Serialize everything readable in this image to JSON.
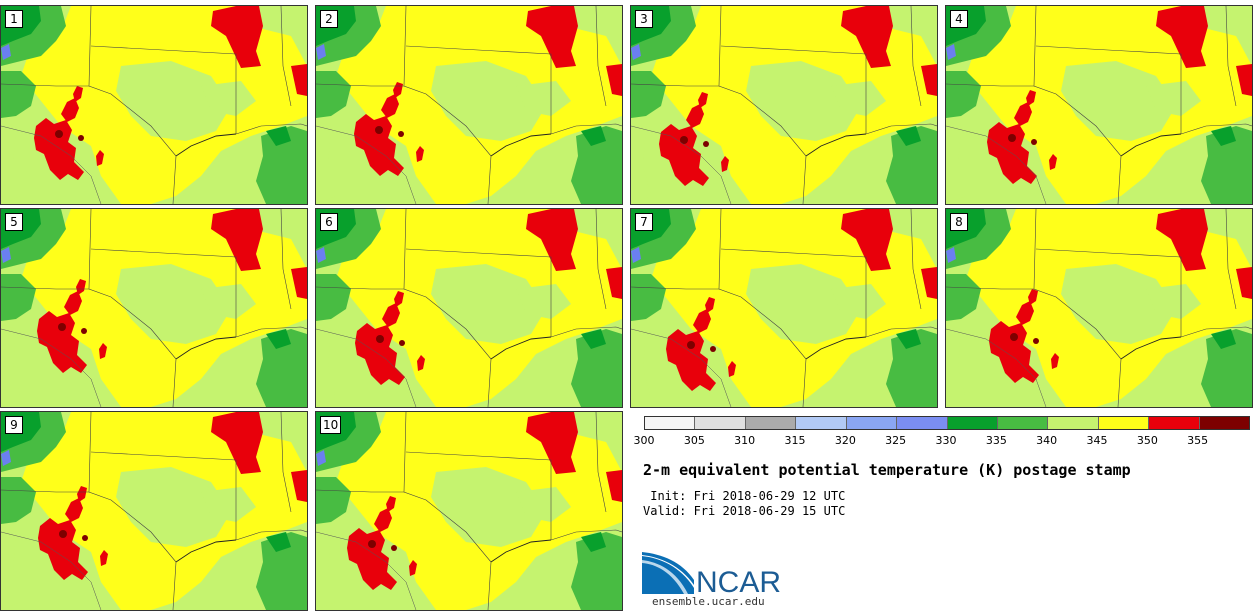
{
  "colors": {
    "c300": "#f5f5f5",
    "c305": "#e0e0e0",
    "c310": "#ababab",
    "c315": "#b2caf5",
    "c320": "#8aa6f3",
    "c325": "#7b8ef2",
    "c330": "#08a02c",
    "c335": "#48bc42",
    "c340": "#c5f36f",
    "c345": "#ffff1a",
    "c350": "#e8000b",
    "c355": "#7d0000",
    "water": "#6b7ff0"
  },
  "stamps": [
    {
      "label": "1"
    },
    {
      "label": "2"
    },
    {
      "label": "3"
    },
    {
      "label": "4"
    },
    {
      "label": "5"
    },
    {
      "label": "6"
    },
    {
      "label": "7"
    },
    {
      "label": "8"
    },
    {
      "label": "9"
    },
    {
      "label": "10"
    }
  ],
  "colorbar": {
    "segments": [
      "#f5f5f5",
      "#e0e0e0",
      "#ababab",
      "#b2caf5",
      "#8aa6f3",
      "#7b8ef2",
      "#08a02c",
      "#48bc42",
      "#c5f36f",
      "#ffff1a",
      "#e8000b",
      "#7d0000"
    ],
    "ticks": [
      "300",
      "305",
      "310",
      "315",
      "320",
      "325",
      "330",
      "335",
      "340",
      "345",
      "350",
      "355"
    ]
  },
  "title": "2-m equivalent potential temperature (K) postage stamp",
  "init": " Init: Fri 2018-06-29 12 UTC",
  "valid": "Valid: Fri 2018-06-29 15 UTC",
  "logo": {
    "text": "NCAR",
    "url": "ensemble.ucar.edu"
  }
}
